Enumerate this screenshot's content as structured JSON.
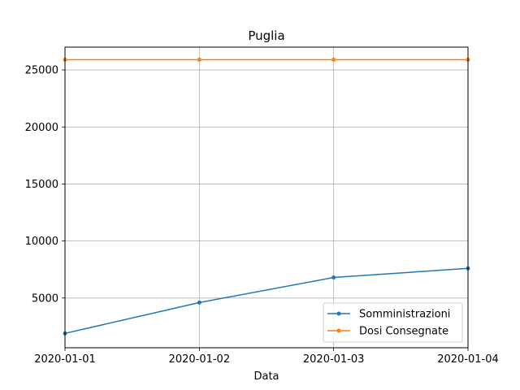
{
  "chart_data": {
    "type": "line",
    "title": "Puglia",
    "xlabel": "Data",
    "ylabel": "",
    "x": [
      "2020-01-01",
      "2020-01-02",
      "2020-01-03",
      "2020-01-04"
    ],
    "series": [
      {
        "name": "Somministrazioni",
        "color": "#1f77b4",
        "marker": "point",
        "values": [
          1900,
          4600,
          6800,
          7600
        ]
      },
      {
        "name": "Dosi Consegnate",
        "color": "#ff7f0e",
        "marker": "point",
        "values": [
          25900,
          25900,
          25900,
          25900
        ]
      }
    ],
    "ylim": [
      640,
      27000
    ],
    "yticks": [
      5000,
      10000,
      15000,
      20000,
      25000
    ],
    "xticks": [
      "2020-01-01",
      "2020-01-02",
      "2020-01-03",
      "2020-01-04"
    ],
    "grid": true,
    "legend_position": "lower-right"
  }
}
